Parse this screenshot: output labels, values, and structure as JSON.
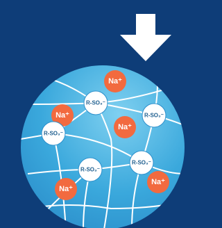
{
  "nodes": [
    {
      "label": "Na⁺",
      "color": "#f26a3f"
    },
    {
      "label": "R-SO₃⁻",
      "color": "#ffffff"
    },
    {
      "label": "Na⁺",
      "color": "#f26a3f"
    },
    {
      "label": "R-SO₃⁻",
      "color": "#ffffff"
    },
    {
      "label": "R-SO₃⁻",
      "color": "#ffffff"
    },
    {
      "label": "Na⁺",
      "color": "#f26a3f"
    },
    {
      "label": "R-SO₃⁻",
      "color": "#ffffff"
    },
    {
      "label": "R-SO₃⁻",
      "color": "#ffffff"
    },
    {
      "label": "Na⁺",
      "color": "#f26a3f"
    },
    {
      "label": "Na⁺",
      "color": "#f26a3f"
    }
  ]
}
